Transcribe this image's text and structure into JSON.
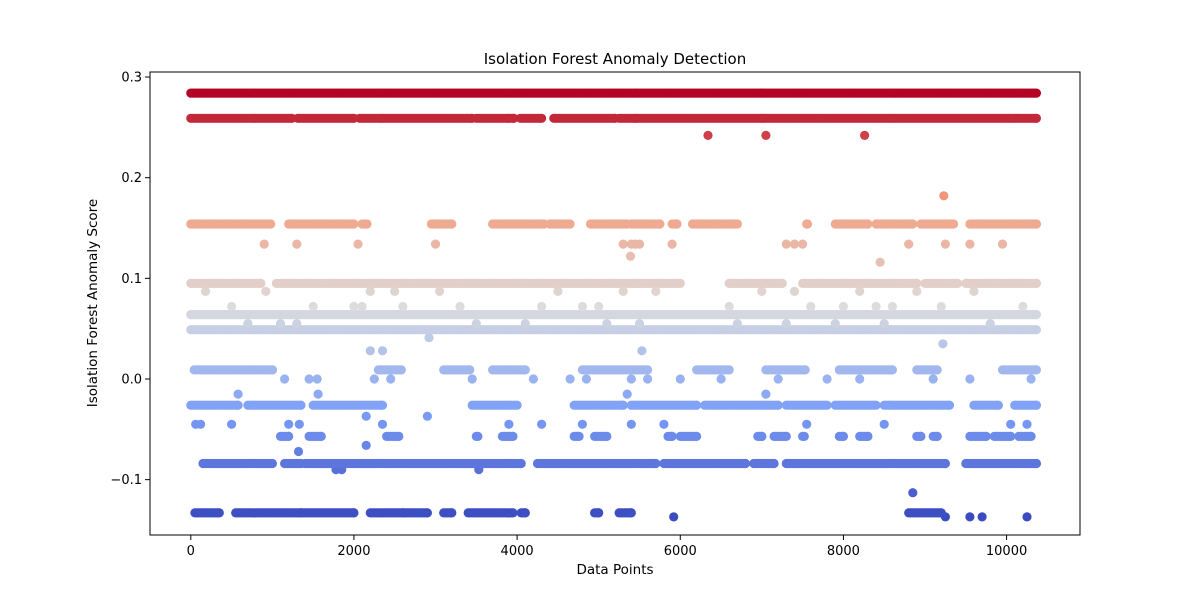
{
  "chart_data": {
    "type": "scatter",
    "title": "Isolation Forest Anomaly Detection",
    "xlabel": "Data Points",
    "ylabel": "Isolation Forest Anomaly Score",
    "xlim": [
      -500,
      10900
    ],
    "ylim": [
      -0.155,
      0.305
    ],
    "xticks": [
      0,
      2000,
      4000,
      6000,
      8000,
      10000
    ],
    "xtick_labels": [
      "0",
      "2000",
      "4000",
      "6000",
      "8000",
      "10000"
    ],
    "yticks": [
      -0.1,
      0.0,
      0.1,
      0.2,
      0.3
    ],
    "ytick_labels": [
      "−0.1",
      "0.0",
      "0.1",
      "0.2",
      "0.3"
    ],
    "grid": false,
    "legend": "none",
    "colormap": "coolwarm",
    "color_range": [
      -0.137,
      0.284
    ],
    "x_extent": [
      0,
      10366
    ],
    "bands": [
      {
        "score": 0.284,
        "segments": [
          [
            0,
            10366
          ]
        ]
      },
      {
        "score": 0.259,
        "segments": [
          [
            0,
            1240
          ],
          [
            1310,
            2000
          ],
          [
            2070,
            3450
          ],
          [
            3500,
            3960
          ],
          [
            4040,
            4300
          ],
          [
            4450,
            5200
          ],
          [
            5250,
            10366
          ]
        ]
      },
      {
        "score": 0.242,
        "points": [
          6340,
          7050,
          8260
        ]
      },
      {
        "score": 0.182,
        "points": [
          9230
        ]
      },
      {
        "score": 0.154,
        "segments": [
          [
            0,
            980
          ],
          [
            1200,
            2000
          ],
          [
            2100,
            2160
          ],
          [
            2950,
            3200
          ],
          [
            3700,
            4330
          ],
          [
            4400,
            4650
          ],
          [
            4900,
            5350
          ],
          [
            5400,
            5750
          ],
          [
            5900,
            5960
          ],
          [
            6150,
            6700
          ],
          [
            7550,
            7560
          ],
          [
            7900,
            8300
          ],
          [
            8400,
            8850
          ],
          [
            8950,
            9350
          ],
          [
            9550,
            10366
          ]
        ]
      },
      {
        "score": 0.134,
        "points": [
          900,
          1300,
          2050,
          3000,
          5300,
          5400,
          5450,
          5500,
          5900,
          7300,
          7400,
          7500,
          8800,
          9250,
          9550,
          9950
        ]
      },
      {
        "score": 0.122,
        "points": [
          5390
        ]
      },
      {
        "score": 0.116,
        "points": [
          8450
        ]
      },
      {
        "score": 0.095,
        "segments": [
          [
            0,
            860
          ],
          [
            1050,
            6000
          ],
          [
            6600,
            7250
          ],
          [
            7500,
            8900
          ],
          [
            9000,
            9400
          ],
          [
            9500,
            10366
          ]
        ]
      },
      {
        "score": 0.087,
        "points": [
          180,
          920,
          2200,
          2500,
          3050,
          4500,
          5300,
          5700,
          7000,
          7400,
          8200,
          8900,
          9600
        ]
      },
      {
        "score": 0.072,
        "points": [
          500,
          1500,
          2000,
          2100,
          2600,
          3300,
          4300,
          4800,
          5000,
          6600,
          7600,
          8000,
          8400,
          8600,
          9200,
          10200
        ]
      },
      {
        "score": 0.064,
        "segments": [
          [
            0,
            10366
          ]
        ]
      },
      {
        "score": 0.055,
        "points": [
          700,
          1100,
          1300,
          3500,
          4100,
          5100,
          5500,
          6700,
          7300,
          7900,
          8500,
          9800
        ]
      },
      {
        "score": 0.049,
        "segments": [
          [
            0,
            10366
          ]
        ]
      },
      {
        "score": 0.041,
        "points": [
          2920
        ]
      },
      {
        "score": 0.035,
        "points": [
          9220
        ]
      },
      {
        "score": 0.028,
        "points": [
          2200,
          2350,
          5530
        ]
      },
      {
        "score": 0.009,
        "segments": [
          [
            40,
            1000
          ],
          [
            2300,
            2580
          ],
          [
            3100,
            3420
          ],
          [
            3700,
            4100
          ],
          [
            4800,
            5600
          ],
          [
            6200,
            6600
          ],
          [
            7050,
            7530
          ],
          [
            7950,
            8600
          ],
          [
            8900,
            9150
          ],
          [
            9950,
            10366
          ]
        ]
      },
      {
        "score": 0.0,
        "points": [
          1150,
          1450,
          1550,
          2250,
          2450,
          3450,
          4200,
          4650,
          4850,
          5400,
          5600,
          6000,
          6500,
          7200,
          7800,
          8200,
          9100,
          9550,
          10300
        ]
      },
      {
        "score": -0.015,
        "points": [
          580,
          1560,
          5350,
          7050
        ]
      },
      {
        "score": -0.026,
        "segments": [
          [
            0,
            580
          ],
          [
            700,
            1350
          ],
          [
            1500,
            2350
          ],
          [
            3450,
            4000
          ],
          [
            4700,
            5300
          ],
          [
            5400,
            6200
          ],
          [
            6300,
            7200
          ],
          [
            7300,
            7800
          ],
          [
            7900,
            8400
          ],
          [
            8500,
            9300
          ],
          [
            9600,
            9900
          ],
          [
            10100,
            10366
          ]
        ]
      },
      {
        "score": -0.037,
        "points": [
          2150,
          2900
        ]
      },
      {
        "score": -0.045,
        "points": [
          60,
          120,
          500,
          1200,
          1330,
          2350,
          3900,
          4300,
          4800,
          5400,
          5800,
          7550,
          8500,
          10050,
          10250
        ]
      },
      {
        "score": -0.057,
        "segments": [
          [
            1100,
            1200
          ],
          [
            1450,
            1600
          ],
          [
            2400,
            2550
          ],
          [
            3500,
            3520
          ],
          [
            3820,
            3950
          ],
          [
            4700,
            4760
          ],
          [
            4950,
            5100
          ],
          [
            5850,
            5900
          ],
          [
            6000,
            6200
          ],
          [
            6950,
            7000
          ],
          [
            7150,
            7300
          ],
          [
            7500,
            7520
          ],
          [
            7950,
            8000
          ],
          [
            8200,
            8300
          ],
          [
            8900,
            8950
          ],
          [
            9100,
            9150
          ],
          [
            9550,
            9750
          ],
          [
            9850,
            10050
          ],
          [
            10150,
            10300
          ]
        ]
      },
      {
        "score": -0.066,
        "points": [
          2150
        ]
      },
      {
        "score": -0.072,
        "points": [
          1320
        ]
      },
      {
        "score": -0.084,
        "segments": [
          [
            150,
            1000
          ],
          [
            1150,
            1350
          ],
          [
            1400,
            4050
          ],
          [
            4250,
            5700
          ],
          [
            5800,
            6800
          ],
          [
            6900,
            7150
          ],
          [
            7300,
            9250
          ],
          [
            9500,
            10366
          ]
        ]
      },
      {
        "score": -0.09,
        "points": [
          1780,
          1850,
          3530
        ]
      },
      {
        "score": -0.113,
        "points": [
          8850
        ]
      },
      {
        "score": -0.133,
        "segments": [
          [
            50,
            350
          ],
          [
            550,
            1350
          ],
          [
            1350,
            2000
          ],
          [
            2200,
            2600
          ],
          [
            2600,
            2900
          ],
          [
            3100,
            3200
          ],
          [
            3400,
            3950
          ],
          [
            4050,
            4100
          ],
          [
            4950,
            5000
          ],
          [
            5250,
            5400
          ],
          [
            8800,
            9200
          ]
        ]
      },
      {
        "score": -0.137,
        "points": [
          5920,
          9250,
          9550,
          9700,
          10250
        ]
      }
    ]
  }
}
